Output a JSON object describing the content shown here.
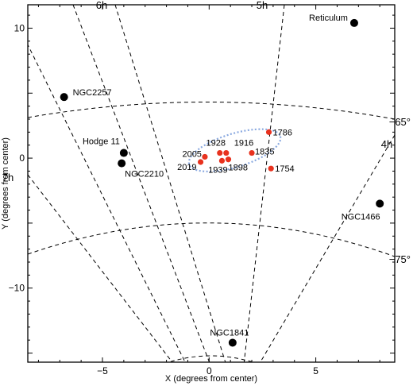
{
  "chart_data": {
    "type": "scatter",
    "xlabel": "X (degrees from center)",
    "ylabel": "Y (degrees from center)",
    "xlim": [
      -8.5,
      8.7
    ],
    "ylim": [
      -15.7,
      11.8
    ],
    "x_ticks": [
      -5,
      0,
      5
    ],
    "y_ticks": [
      -10,
      0,
      10
    ],
    "x_tick_labels": [
      "−5",
      "0",
      "5"
    ],
    "y_tick_labels": [
      "−10",
      "0",
      "10"
    ],
    "grid": "dashed RA/Dec coordinate lines",
    "ra_labels": [
      "7h",
      "6h",
      "5h",
      "4h"
    ],
    "dec_labels": [
      "−65°",
      "−75°"
    ],
    "black_points": [
      {
        "label": "Reticulum",
        "x": 6.8,
        "y": 10.4
      },
      {
        "label": "NGC2257",
        "x": -6.8,
        "y": 4.7
      },
      {
        "label": "Hodge 11",
        "x": -4.0,
        "y": 0.4
      },
      {
        "label": "NGC2210",
        "x": -4.1,
        "y": -0.4
      },
      {
        "label": "NGC1466",
        "x": 8.0,
        "y": -3.5
      },
      {
        "label": "NGC1841",
        "x": 1.1,
        "y": -14.2
      }
    ],
    "red_points": [
      {
        "label": "1786",
        "x": 2.8,
        "y": 2.0
      },
      {
        "label": "1928",
        "x": 0.5,
        "y": 0.4
      },
      {
        "label": "1916",
        "x": 0.8,
        "y": 0.4
      },
      {
        "label": "2005",
        "x": -0.2,
        "y": 0.1
      },
      {
        "label": "1835",
        "x": 2.0,
        "y": 0.4
      },
      {
        "label": "1898",
        "x": 0.9,
        "y": -0.1
      },
      {
        "label": "2019",
        "x": -0.4,
        "y": -0.3
      },
      {
        "label": "1939",
        "x": 0.6,
        "y": -0.2
      },
      {
        "label": "1754",
        "x": 2.9,
        "y": -0.8
      }
    ],
    "colors": {
      "black_points": "#000000",
      "red_points": "#e8321e",
      "ellipse": "#8aa9e0"
    }
  }
}
